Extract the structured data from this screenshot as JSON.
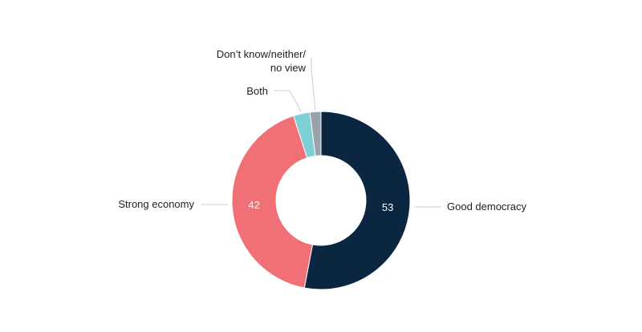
{
  "chart_data": {
    "type": "pie",
    "variant": "donut",
    "categories": [
      "Good democracy",
      "Strong economy",
      "Both",
      "Don't know/neither/no view"
    ],
    "values": [
      53,
      42,
      3,
      2
    ],
    "value_labels": [
      "53",
      "42",
      "",
      ""
    ],
    "label_lines": [
      [
        "Good democracy"
      ],
      [
        "Strong economy"
      ],
      [
        "Both"
      ],
      [
        "Don’t know/neither/",
        "no view"
      ]
    ],
    "colors": [
      "#0b2640",
      "#f07075",
      "#7ccfd4",
      "#9aa3ab"
    ],
    "start": "top, clockwise",
    "legend": "none"
  }
}
